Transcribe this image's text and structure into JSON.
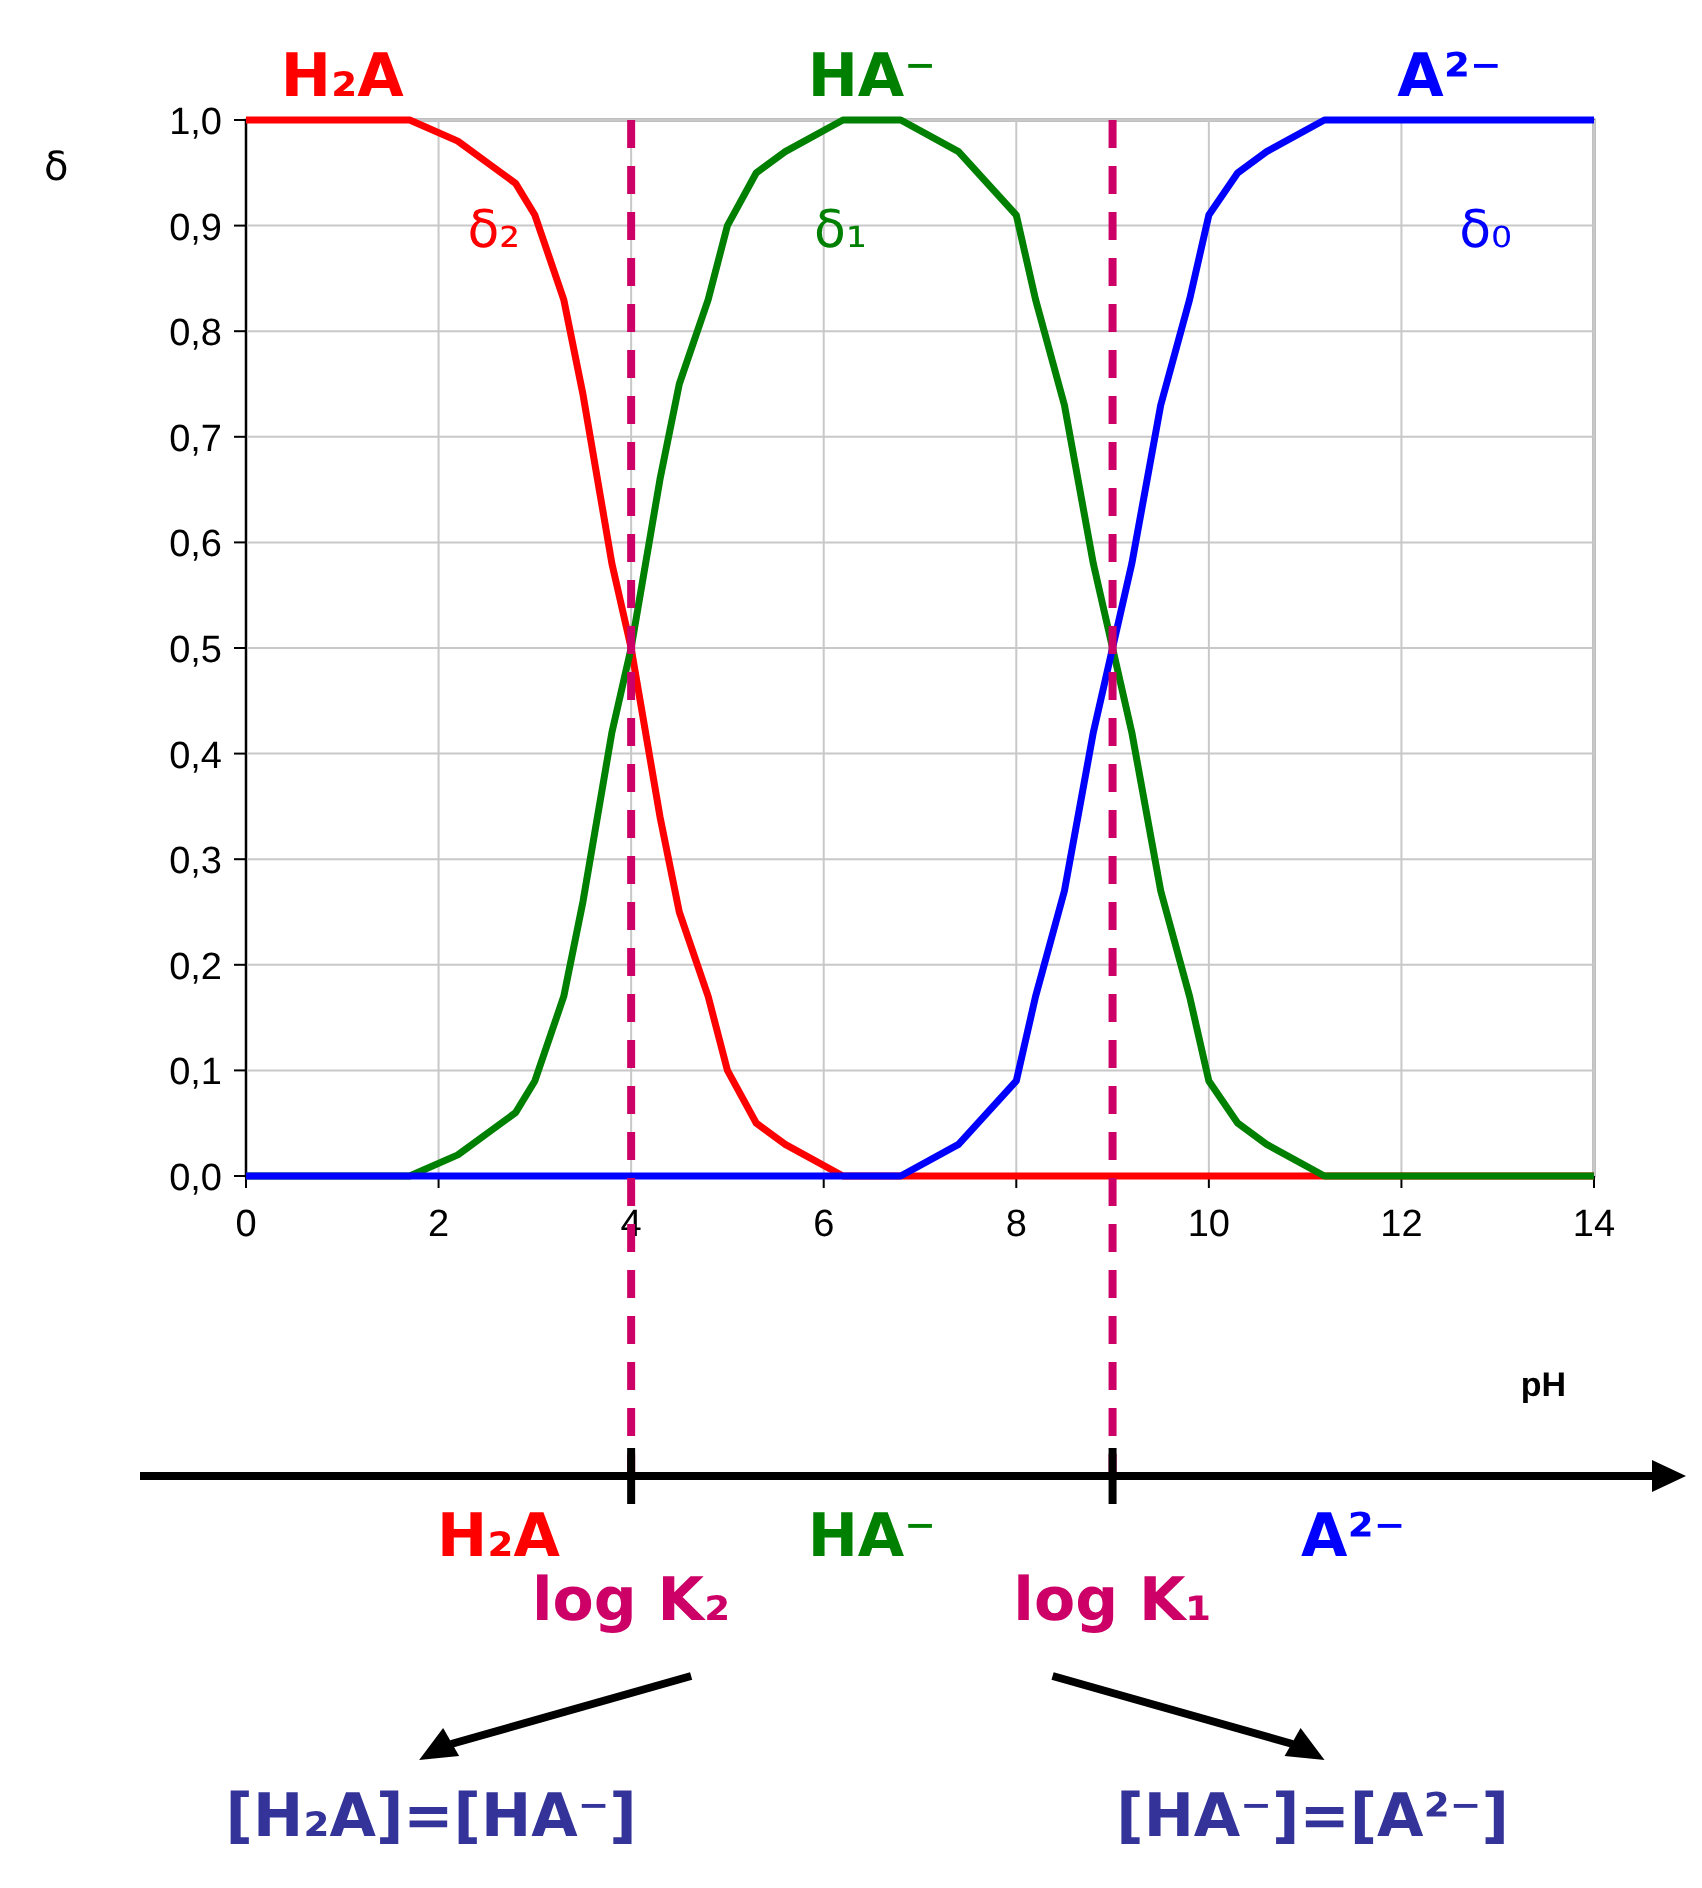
{
  "chart_data": {
    "type": "line",
    "xlabel": "pH",
    "ylabel": "δ",
    "xlim": [
      0,
      14
    ],
    "ylim": [
      0,
      1
    ],
    "xticks": [
      0,
      2,
      4,
      6,
      8,
      10,
      12,
      14
    ],
    "yticks": [
      {
        "value": 0,
        "label": "0,0"
      },
      {
        "value": 0.1,
        "label": "0,1"
      },
      {
        "value": 0.2,
        "label": "0,2"
      },
      {
        "value": 0.3,
        "label": "0,3"
      },
      {
        "value": 0.4,
        "label": "0,4"
      },
      {
        "value": 0.5,
        "label": "0,5"
      },
      {
        "value": 0.6,
        "label": "0,6"
      },
      {
        "value": 0.7,
        "label": "0,7"
      },
      {
        "value": 0.8,
        "label": "0,8"
      },
      {
        "value": 0.9,
        "label": "0,9"
      },
      {
        "value": 1,
        "label": "1,0"
      }
    ],
    "grid": true,
    "marker": "none",
    "line_style": "solid",
    "series": [
      {
        "name": "δ₂",
        "color": "#ff0000",
        "x": [
          0,
          1.7,
          2.2,
          2.5,
          2.8,
          3.0,
          3.3,
          3.5,
          3.8,
          4,
          4.3,
          4.5,
          4.8,
          5,
          5.3,
          5.6,
          6.2,
          14
        ],
        "values": [
          1,
          1,
          0.98,
          0.96,
          0.94,
          0.91,
          0.83,
          0.74,
          0.58,
          0.5,
          0.34,
          0.25,
          0.17,
          0.1,
          0.05,
          0.03,
          0,
          0
        ]
      },
      {
        "name": "δ₁",
        "color": "#008000",
        "x": [
          0,
          1.7,
          2.2,
          2.5,
          2.8,
          3.0,
          3.3,
          3.5,
          3.8,
          4,
          4.3,
          4.5,
          4.8,
          5,
          5.3,
          5.6,
          6.2,
          6.8,
          7.4,
          7.7,
          8.0,
          8.2,
          8.5,
          8.8,
          9,
          9.2,
          9.5,
          9.8,
          10,
          10.3,
          10.6,
          11.2,
          14
        ],
        "values": [
          0,
          0,
          0.02,
          0.04,
          0.06,
          0.09,
          0.17,
          0.26,
          0.42,
          0.5,
          0.66,
          0.75,
          0.83,
          0.9,
          0.95,
          0.97,
          1,
          1,
          0.97,
          0.94,
          0.91,
          0.83,
          0.73,
          0.58,
          0.5,
          0.42,
          0.27,
          0.17,
          0.09,
          0.05,
          0.03,
          0,
          0
        ]
      },
      {
        "name": "δ₀",
        "color": "#0000ff",
        "x": [
          0,
          6.8,
          7.4,
          7.7,
          8.0,
          8.2,
          8.5,
          8.8,
          9,
          9.2,
          9.5,
          9.8,
          10,
          10.3,
          10.6,
          11.2,
          14
        ],
        "values": [
          0,
          0,
          0.03,
          0.06,
          0.09,
          0.17,
          0.27,
          0.42,
          0.5,
          0.58,
          0.73,
          0.83,
          0.91,
          0.95,
          0.97,
          1,
          1
        ]
      }
    ],
    "ref_lines": [
      {
        "axis": "x",
        "value": 4,
        "label": "log K₂",
        "color": "#cc0066",
        "line_style": "dashed"
      },
      {
        "axis": "x",
        "value": 9,
        "label": "log K₁",
        "color": "#cc0066",
        "line_style": "dashed"
      }
    ],
    "annotations": [
      {
        "text": "H₂A",
        "x": 1,
        "y": 1
      },
      {
        "text": "HA⁻",
        "x": 6.5,
        "y": 1
      },
      {
        "text": "A²⁻",
        "x": 12.5,
        "y": 1
      },
      "H₂A",
      "HA⁻",
      "A²⁻",
      "[H₂A]=[HA⁻]",
      "[HA⁻]=[A²⁻]"
    ]
  }
}
